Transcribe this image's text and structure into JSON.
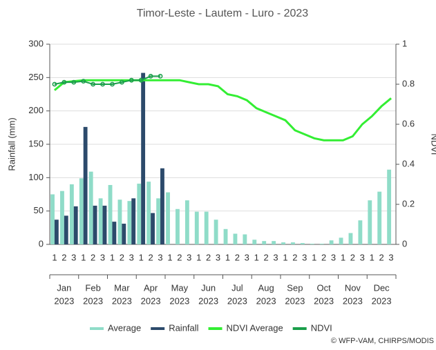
{
  "chart_data": {
    "type": "bar",
    "title": "Timor-Leste - Lautem - Luro - 2023",
    "y_label": "Rainfall (mm)",
    "y2_label": "NDVI",
    "categories": [
      "1",
      "2",
      "3",
      "1",
      "2",
      "3",
      "1",
      "2",
      "3",
      "1",
      "2",
      "3",
      "1",
      "2",
      "3",
      "1",
      "2",
      "3",
      "1",
      "2",
      "3",
      "1",
      "2",
      "3",
      "1",
      "2",
      "3",
      "1",
      "2",
      "3",
      "1",
      "2",
      "3",
      "1",
      "2",
      "3"
    ],
    "month_labels": [
      [
        "Jan",
        "2023"
      ],
      [
        "Feb",
        "2023"
      ],
      [
        "Mar",
        "2023"
      ],
      [
        "Apr",
        "2023"
      ],
      [
        "May",
        "2023"
      ],
      [
        "Jun",
        "2023"
      ],
      [
        "Jul",
        "2023"
      ],
      [
        "Aug",
        "2023"
      ],
      [
        "Sep",
        "2023"
      ],
      [
        "Oct",
        "2023"
      ],
      [
        "Nov",
        "2023"
      ],
      [
        "Dec",
        "2023"
      ]
    ],
    "series": [
      {
        "name": "Average",
        "color": "#8fdcc8",
        "kind": "bar",
        "values": [
          75,
          80,
          90,
          99,
          109,
          69,
          89,
          67,
          65,
          91,
          94,
          69,
          78,
          53,
          66,
          49,
          49,
          37,
          23,
          16,
          15,
          7,
          5,
          5,
          3,
          3,
          2,
          1,
          1,
          6,
          10,
          17,
          36,
          66,
          79,
          112
        ]
      },
      {
        "name": "Rainfall",
        "color": "#2c4a6b",
        "kind": "bar",
        "values": [
          37,
          43,
          57,
          176,
          58,
          58,
          34,
          31,
          69,
          257,
          47,
          114,
          null,
          null,
          null,
          null,
          null,
          null,
          null,
          null,
          null,
          null,
          null,
          null,
          null,
          null,
          null,
          null,
          null,
          null,
          null,
          null,
          null,
          null,
          null,
          null
        ]
      },
      {
        "name": "NDVI Average",
        "color": "#33ee33",
        "kind": "line",
        "axis": "y2",
        "values": [
          0.77,
          0.81,
          0.815,
          0.82,
          0.82,
          0.82,
          0.82,
          0.82,
          0.82,
          0.82,
          0.82,
          0.82,
          0.82,
          0.82,
          0.81,
          0.8,
          0.8,
          0.79,
          0.75,
          0.74,
          0.72,
          0.68,
          0.66,
          0.64,
          0.62,
          0.57,
          0.55,
          0.53,
          0.52,
          0.52,
          0.52,
          0.54,
          0.6,
          0.64,
          0.69,
          0.73
        ]
      },
      {
        "name": "NDVI",
        "color": "#1a9e4a",
        "kind": "line",
        "markers": true,
        "axis": "y2",
        "values": [
          0.8,
          0.81,
          0.81,
          0.815,
          0.8,
          0.8,
          0.8,
          0.81,
          0.82,
          0.82,
          0.84,
          0.84,
          null,
          null,
          null,
          null,
          null,
          null,
          null,
          null,
          null,
          null,
          null,
          null,
          null,
          null,
          null,
          null,
          null,
          null,
          null,
          null,
          null,
          null,
          null,
          null
        ]
      }
    ],
    "ylim": [
      0,
      300
    ],
    "yticks": [
      0,
      50,
      100,
      150,
      200,
      250,
      300
    ],
    "y2lim": [
      0,
      1
    ],
    "y2ticks": [
      0,
      0.2,
      0.4,
      0.6,
      0.8,
      1
    ],
    "grid": true,
    "credit": "© WFP-VAM, CHIRPS/MODIS"
  }
}
